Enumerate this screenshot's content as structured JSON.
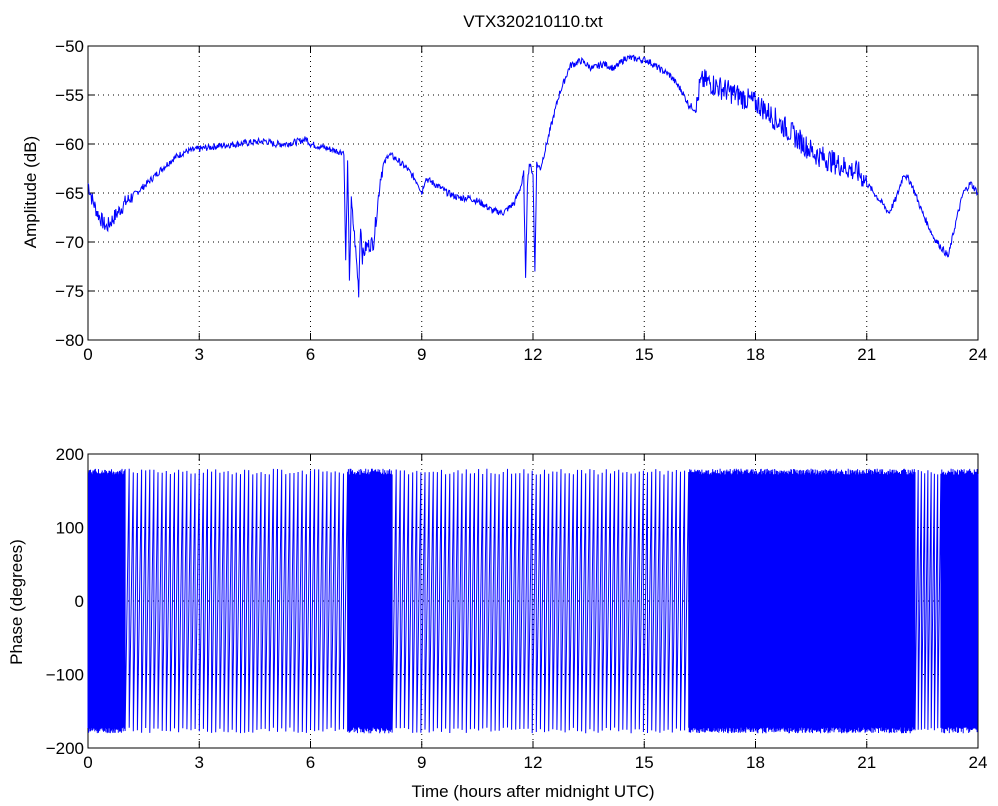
{
  "figure": {
    "title": "VTX320210110.txt",
    "line_color": "#0000ff"
  },
  "chart_data": [
    {
      "type": "line",
      "title": "VTX320210110.txt",
      "xlabel": "",
      "ylabel": "Amplitude (dB)",
      "xlim": [
        0,
        24
      ],
      "ylim": [
        -80,
        -50
      ],
      "xticks": [
        0,
        3,
        6,
        9,
        12,
        15,
        18,
        21,
        24
      ],
      "yticks": [
        -80,
        -75,
        -70,
        -65,
        -60,
        -55,
        -50
      ],
      "ytick_labels": [
        "−80",
        "−75",
        "−70",
        "−65",
        "−60",
        "−55",
        "−50"
      ],
      "grid": true,
      "series": [
        {
          "color": "#0000ff",
          "x": [
            0,
            0.1,
            0.25,
            0.4,
            0.5,
            0.7,
            1.0,
            1.3,
            1.6,
            2.0,
            2.3,
            2.6,
            3.0,
            3.5,
            4.0,
            4.5,
            4.8,
            5.0,
            5.3,
            5.6,
            5.9,
            6.0,
            6.2,
            6.5,
            6.8,
            6.9,
            6.95,
            7.0,
            7.05,
            7.1,
            7.2,
            7.3,
            7.35,
            7.4,
            7.5,
            7.7,
            7.9,
            8.0,
            8.1,
            8.3,
            8.6,
            8.9,
            9.0,
            9.1,
            9.4,
            9.7,
            10.0,
            10.3,
            10.6,
            10.9,
            11.2,
            11.5,
            11.7,
            11.75,
            11.8,
            11.85,
            11.9,
            12.0,
            12.05,
            12.1,
            12.2,
            12.3,
            12.5,
            12.7,
            13.0,
            13.3,
            13.6,
            13.9,
            14.2,
            14.5,
            14.8,
            15.1,
            15.4,
            15.7,
            16.0,
            16.2,
            16.4,
            16.5,
            16.6,
            16.9,
            17.2,
            17.5,
            17.8,
            18.1,
            18.4,
            18.7,
            19.0,
            19.3,
            19.6,
            19.9,
            20.2,
            20.5,
            20.8,
            21.1,
            21.4,
            21.6,
            21.8,
            22.0,
            22.2,
            22.5,
            22.8,
            23.0,
            23.2,
            23.4,
            23.6,
            23.8,
            24.0
          ],
          "y": [
            -64,
            -65.5,
            -67,
            -68,
            -68.5,
            -67.5,
            -66,
            -65,
            -64,
            -62.5,
            -61.5,
            -60.8,
            -60.5,
            -60.2,
            -60,
            -59.8,
            -59.7,
            -60,
            -60,
            -59.8,
            -59.5,
            -60,
            -60.2,
            -60.5,
            -60.8,
            -60.8,
            -72,
            -62,
            -73.5,
            -66,
            -70,
            -75,
            -68,
            -71.5,
            -70.5,
            -70,
            -63,
            -62,
            -61,
            -61.5,
            -62.5,
            -64,
            -65,
            -63.5,
            -64.2,
            -65,
            -65.5,
            -65.5,
            -66,
            -66.8,
            -67,
            -66,
            -64,
            -63,
            -74,
            -64,
            -62,
            -63,
            -73,
            -62,
            -62.5,
            -61,
            -58,
            -55,
            -52,
            -51.5,
            -52.3,
            -51.8,
            -52.3,
            -51.2,
            -51.3,
            -51.5,
            -52.3,
            -53,
            -54.5,
            -56,
            -56.5,
            -54,
            -53.5,
            -54,
            -54.5,
            -55,
            -55.5,
            -56,
            -57,
            -58,
            -59,
            -60,
            -61,
            -61.5,
            -62,
            -62.5,
            -63,
            -64.5,
            -66,
            -67,
            -65.5,
            -63,
            -64,
            -67,
            -69.5,
            -70.5,
            -71.5,
            -68,
            -65,
            -64,
            -65
          ]
        }
      ]
    },
    {
      "type": "line",
      "title": "",
      "xlabel": "Time (hours after midnight UTC)",
      "ylabel": "Phase (degrees)",
      "xlim": [
        0,
        24
      ],
      "ylim": [
        -200,
        200
      ],
      "xticks": [
        0,
        3,
        6,
        9,
        12,
        15,
        18,
        21,
        24
      ],
      "yticks": [
        -200,
        -100,
        0,
        100,
        200
      ],
      "ytick_labels": [
        "−200",
        "−100",
        "0",
        "100",
        "200"
      ],
      "grid": true,
      "phase_range": [
        -180,
        180
      ],
      "wrap_segments": [
        {
          "x_start": 0,
          "x_end": 1.0,
          "wraps_per_hour": 60
        },
        {
          "x_start": 1.0,
          "x_end": 7.0,
          "wraps_per_hour": 9
        },
        {
          "x_start": 7.0,
          "x_end": 8.2,
          "wraps_per_hour": 45
        },
        {
          "x_start": 8.2,
          "x_end": 16.2,
          "wraps_per_hour": 9
        },
        {
          "x_start": 16.2,
          "x_end": 16.5,
          "wraps_per_hour": 80
        },
        {
          "x_start": 16.5,
          "x_end": 22.3,
          "wraps_per_hour": 55
        },
        {
          "x_start": 22.3,
          "x_end": 23.0,
          "wraps_per_hour": 12
        },
        {
          "x_start": 23.0,
          "x_end": 24.0,
          "wraps_per_hour": 40
        }
      ],
      "series": [
        {
          "color": "#0000ff"
        }
      ]
    }
  ]
}
